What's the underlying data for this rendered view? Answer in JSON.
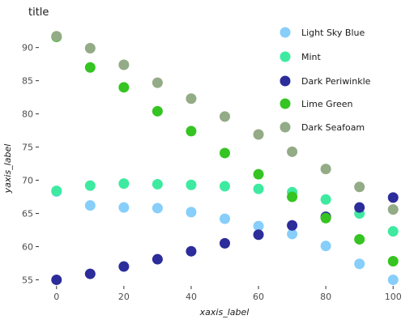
{
  "chart_data": {
    "type": "scatter",
    "title": "title",
    "xlabel": "xaxis_label",
    "ylabel": "yaxis_label",
    "xlim": [
      -5,
      105
    ],
    "ylim": [
      54.2,
      93.5
    ],
    "x_ticks": [
      0,
      20,
      40,
      60,
      80,
      100
    ],
    "y_ticks": [
      55,
      60,
      65,
      70,
      75,
      80,
      85,
      90
    ],
    "x": [
      0,
      10,
      20,
      30,
      40,
      50,
      60,
      70,
      80,
      90,
      100
    ],
    "grid": false,
    "legend_position": "right",
    "series": [
      {
        "name": "Light Sky Blue",
        "color": "#87cefa",
        "values": [
          68.3,
          66.2,
          65.9,
          65.8,
          65.2,
          64.2,
          63.1,
          61.9,
          60.1,
          57.4,
          55.0
        ]
      },
      {
        "name": "Mint",
        "color": "#3eeaa0",
        "values": [
          68.4,
          69.2,
          69.5,
          69.4,
          69.3,
          69.1,
          68.7,
          68.2,
          67.1,
          65.0,
          62.3
        ]
      },
      {
        "name": "Dark Periwinkle",
        "color": "#2c2c9a",
        "values": [
          55.0,
          55.9,
          57.0,
          58.1,
          59.3,
          60.5,
          61.8,
          63.2,
          64.5,
          65.9,
          67.4
        ]
      },
      {
        "name": "Lime Green",
        "color": "#35c421",
        "values": [
          91.6,
          87.0,
          84.0,
          80.4,
          77.4,
          74.1,
          70.9,
          67.5,
          64.3,
          61.1,
          57.8
        ]
      },
      {
        "name": "Dark Seafoam",
        "color": "#93ab86",
        "values": [
          91.7,
          89.9,
          87.4,
          84.7,
          82.3,
          79.6,
          76.9,
          74.3,
          71.7,
          69.0,
          65.6
        ]
      }
    ]
  }
}
